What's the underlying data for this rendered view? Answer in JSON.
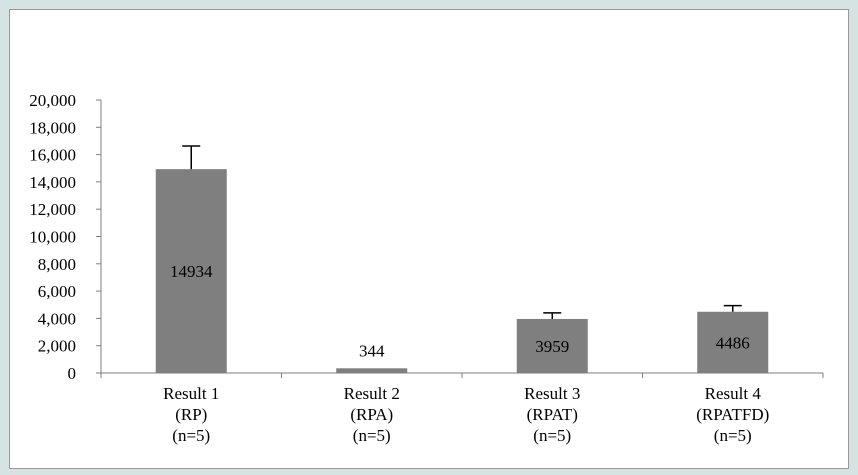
{
  "chart_data": {
    "type": "bar",
    "title": "",
    "xlabel": "",
    "ylabel": "",
    "categories": [
      [
        "Result 1",
        "(RP)",
        "(n=5)"
      ],
      [
        "Result 2",
        "(RPA)",
        "(n=5)"
      ],
      [
        "Result 3",
        "(RPAT)",
        "(n=5)"
      ],
      [
        "Result 4",
        "(RPATFD)",
        "(n=5)"
      ]
    ],
    "values": [
      14934,
      344,
      3959,
      4486
    ],
    "error_upper": [
      1700,
      0,
      450,
      450
    ],
    "data_labels": [
      "14934",
      "344",
      "3959",
      "4486"
    ],
    "ylim": [
      0,
      20000
    ],
    "yticks": [
      0,
      2000,
      4000,
      6000,
      8000,
      10000,
      12000,
      14000,
      16000,
      18000,
      20000
    ],
    "ytick_labels": [
      "0",
      "2,000",
      "4,000",
      "6,000",
      "8,000",
      "10,000",
      "12,000",
      "14,000",
      "16,000",
      "18,000",
      "20,000"
    ],
    "grid": false,
    "legend": "none",
    "bar_color": "#7f7f7f"
  }
}
